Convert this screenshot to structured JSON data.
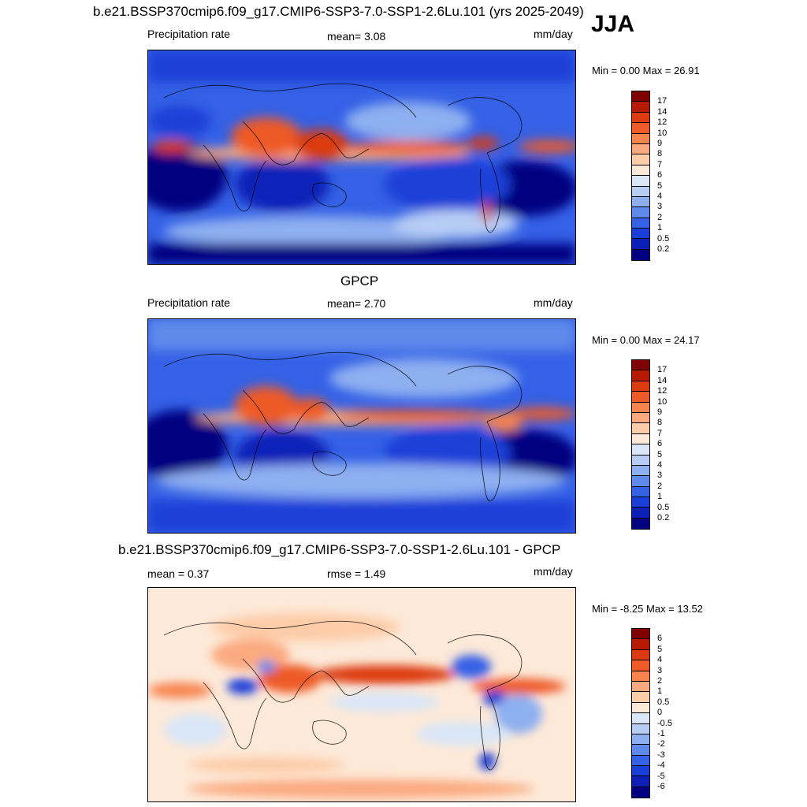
{
  "season": "JJA",
  "panels": [
    {
      "id": "model",
      "title": "b.e21.BSSP370cmip6.f09_g17.CMIP6-SSP3-7.0-SSP1-2.6Lu.101 (yrs 2025-2049)",
      "left_label": "Precipitation rate",
      "center_label": "mean=   3.08",
      "units": "mm/day",
      "minmax": "Min =   0.00 Max =  26.91",
      "colorbar_labels": [
        "17",
        "14",
        "12",
        "10",
        "9",
        "8",
        "7",
        "6",
        "5",
        "4",
        "3",
        "2",
        "1",
        "0.5",
        "0.2"
      ]
    },
    {
      "id": "obs",
      "title": "GPCP",
      "left_label": "Precipitation rate",
      "center_label": "mean=   2.70",
      "units": "mm/day",
      "minmax": "Min =   0.00 Max =  24.17",
      "colorbar_labels": [
        "17",
        "14",
        "12",
        "10",
        "9",
        "8",
        "7",
        "6",
        "5",
        "4",
        "3",
        "2",
        "1",
        "0.5",
        "0.2"
      ]
    },
    {
      "id": "diff",
      "title": "b.e21.BSSP370cmip6.f09_g17.CMIP6-SSP3-7.0-SSP1-2.6Lu.101 - GPCP",
      "left_label": "mean =   0.37",
      "center_label": "rmse =   1.49",
      "units": "mm/day",
      "minmax": "Min =  -8.25 Max =  13.52",
      "colorbar_labels": [
        "6",
        "5",
        "4",
        "3",
        "2",
        "1",
        "0.5",
        "0",
        "-0.5",
        "-1",
        "-2",
        "-3",
        "-4",
        "-5",
        "-6"
      ]
    }
  ],
  "colors": {
    "precip_scale": [
      "#800000",
      "#b81a00",
      "#dc3a10",
      "#ee5a28",
      "#f7844f",
      "#fbaa80",
      "#fdcca8",
      "#fde9d8",
      "#d8e6f8",
      "#b7cdf4",
      "#8eaff0",
      "#5e8aeb",
      "#3461e6",
      "#1a3fd8",
      "#0c20b8",
      "#000080"
    ],
    "diff_scale": [
      "#800000",
      "#b81a00",
      "#dc3a10",
      "#ee5a28",
      "#f7844f",
      "#fbaa80",
      "#fdcca8",
      "#fde9d8",
      "#d8e6f8",
      "#b7cdf4",
      "#8eaff0",
      "#5e8aeb",
      "#3461e6",
      "#1a3fd8",
      "#0c20b8",
      "#000080"
    ]
  },
  "chart_data": [
    {
      "type": "heatmap",
      "title": "b.e21.BSSP370cmip6.f09_g17.CMIP6-SSP3-7.0-SSP1-2.6Lu.101 (yrs 2025-2049)",
      "variable": "Precipitation rate",
      "units": "mm/day",
      "season": "JJA",
      "mean": 3.08,
      "min": 0.0,
      "max": 26.91,
      "levels": [
        0.2,
        0.5,
        1,
        2,
        3,
        4,
        5,
        6,
        7,
        8,
        9,
        10,
        12,
        14,
        17
      ]
    },
    {
      "type": "heatmap",
      "title": "GPCP",
      "variable": "Precipitation rate",
      "units": "mm/day",
      "season": "JJA",
      "mean": 2.7,
      "min": 0.0,
      "max": 24.17,
      "levels": [
        0.2,
        0.5,
        1,
        2,
        3,
        4,
        5,
        6,
        7,
        8,
        9,
        10,
        12,
        14,
        17
      ]
    },
    {
      "type": "heatmap",
      "title": "b.e21.BSSP370cmip6.f09_g17.CMIP6-SSP3-7.0-SSP1-2.6Lu.101 - GPCP",
      "units": "mm/day",
      "season": "JJA",
      "mean": 0.37,
      "rmse": 1.49,
      "min": -8.25,
      "max": 13.52,
      "levels": [
        -6,
        -5,
        -4,
        -3,
        -2,
        -1,
        -0.5,
        0,
        0.5,
        1,
        2,
        3,
        4,
        5,
        6
      ]
    }
  ]
}
